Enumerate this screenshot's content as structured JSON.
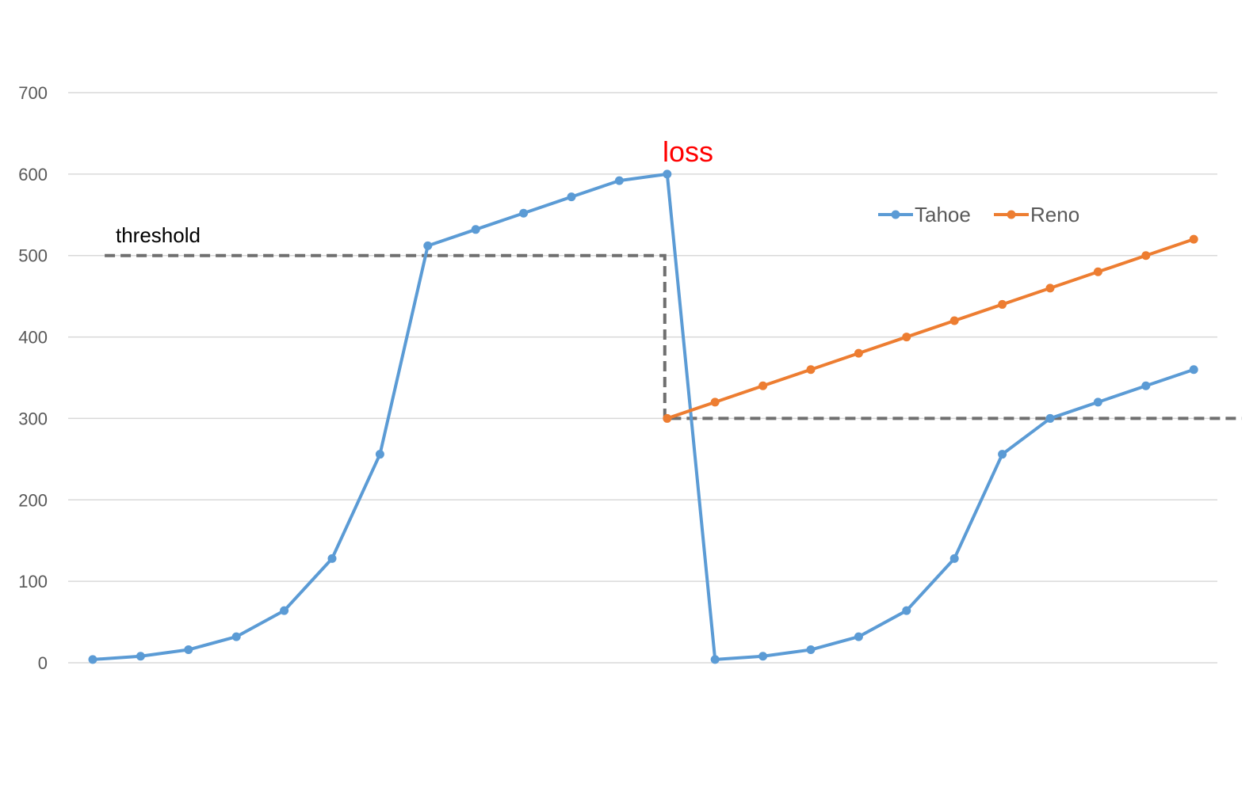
{
  "chart_data": {
    "type": "line",
    "title": "",
    "xlabel": "",
    "ylabel": "",
    "ylim": [
      0,
      700
    ],
    "yticks": [
      0,
      100,
      200,
      300,
      400,
      500,
      600,
      700
    ],
    "grid": true,
    "x": [
      1,
      2,
      3,
      4,
      5,
      6,
      7,
      8,
      9,
      10,
      11,
      12,
      13,
      14,
      15,
      16,
      17,
      18,
      19,
      20,
      21,
      22,
      23,
      24
    ],
    "series": [
      {
        "name": "Tahoe",
        "color": "#5B9BD5",
        "x": [
          1,
          2,
          3,
          4,
          5,
          6,
          7,
          8,
          9,
          10,
          11,
          12,
          13,
          14,
          15,
          16,
          17,
          18,
          19,
          20,
          21,
          22,
          23,
          24
        ],
        "values": [
          4,
          8,
          16,
          32,
          64,
          128,
          256,
          512,
          532,
          552,
          572,
          592,
          600,
          4,
          8,
          16,
          32,
          64,
          128,
          256,
          300,
          320,
          340,
          360
        ]
      },
      {
        "name": "Reno",
        "color": "#ED7D31",
        "x": [
          13,
          14,
          15,
          16,
          17,
          18,
          19,
          20,
          21,
          22,
          23,
          24
        ],
        "values": [
          300,
          320,
          340,
          360,
          380,
          400,
          420,
          440,
          460,
          480,
          500,
          520
        ]
      }
    ],
    "threshold": {
      "label": "threshold",
      "color": "#6F6F6F",
      "segments": [
        {
          "x_from": 1.25,
          "x_to": 12.95,
          "y": 500
        },
        {
          "x_from": 12.95,
          "x_to": 25,
          "y": 300
        }
      ]
    },
    "annotations": [
      {
        "text": "loss",
        "color": "#FF0000",
        "x": 13,
        "y": 600
      }
    ],
    "legend": {
      "position": "right",
      "entries": [
        "Tahoe",
        "Reno"
      ]
    }
  }
}
